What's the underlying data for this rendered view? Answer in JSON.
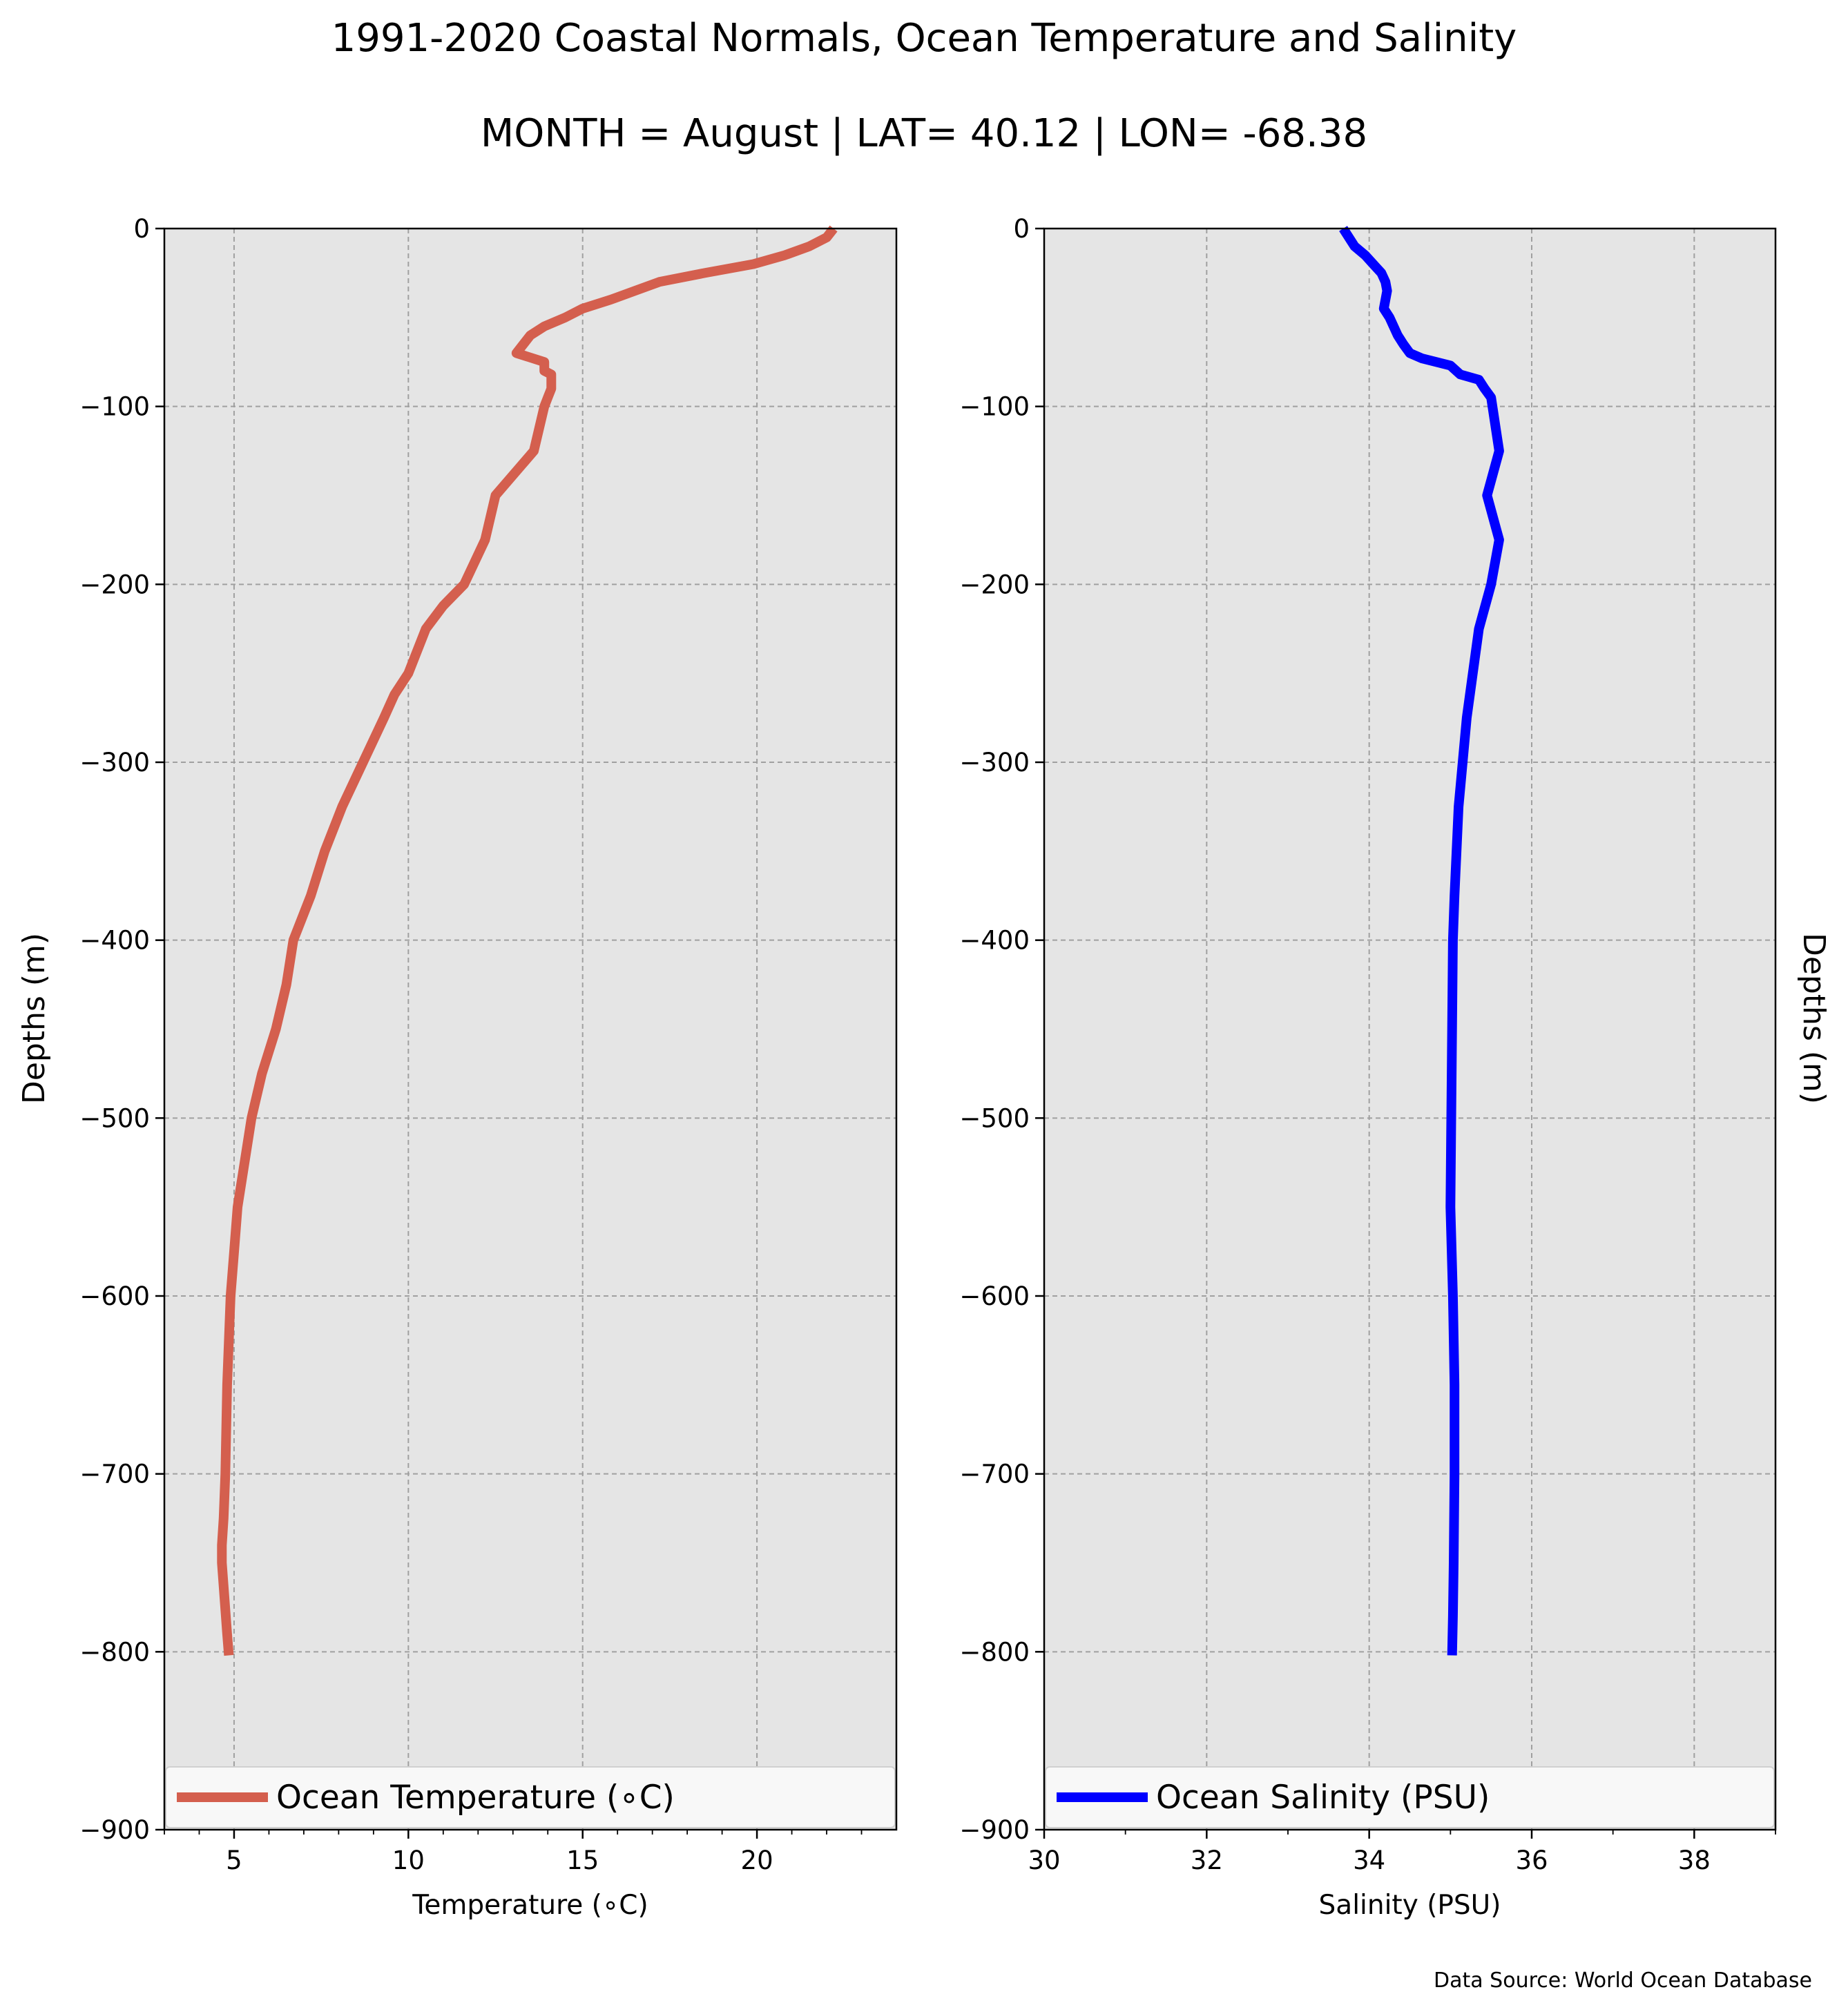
{
  "title": "1991-2020 Coastal Normals, Ocean Temperature and Salinity",
  "subtitle": "MONTH = August | LAT= 40.12 | LON= -68.38",
  "source_note": "Data Source: World Ocean Database",
  "colors": {
    "plot_background": "#e5e5e5",
    "grid": "#a0a0a0",
    "temperature_line": "#d45f4e",
    "salinity_line": "#0000ff",
    "legend_background": "#f8f8f8"
  },
  "chart_data": [
    {
      "type": "line",
      "xlabel": "Temperature ($^\\circ$C)",
      "xlabel_display": "Temperature (∘C)",
      "ylabel": "Depths (m)",
      "xlim": [
        3,
        24
      ],
      "ylim": [
        -900,
        0
      ],
      "xticks": [
        5,
        10,
        15,
        20
      ],
      "xtick_labels": [
        "5",
        "10",
        "15",
        "20"
      ],
      "minor_xticks": [
        3,
        4,
        6,
        7,
        8,
        9,
        11,
        12,
        13,
        14,
        16,
        17,
        18,
        19,
        21,
        22,
        23
      ],
      "yticks": [
        0,
        -100,
        -200,
        -300,
        -400,
        -500,
        -600,
        -700,
        -800,
        -900
      ],
      "ytick_labels": [
        "0",
        "−100",
        "−200",
        "−300",
        "−400",
        "−500",
        "−600",
        "−700",
        "−800",
        "−900"
      ],
      "grid": true,
      "legend_position": "bottom",
      "series": [
        {
          "name": "Ocean Temperature (∘C)",
          "x": [
            22.2,
            22.0,
            21.5,
            20.8,
            19.9,
            18.5,
            17.2,
            16.5,
            15.8,
            15.0,
            14.5,
            13.9,
            13.5,
            13.3,
            13.1,
            13.9,
            13.9,
            14.1,
            14.1,
            14.1,
            14.0,
            13.9,
            13.6,
            12.5,
            12.2,
            11.6,
            11.0,
            10.5,
            10.0,
            9.6,
            9.3,
            8.7,
            8.1,
            7.6,
            7.2,
            6.7,
            6.5,
            6.2,
            5.8,
            5.5,
            5.3,
            5.1,
            5.0,
            4.9,
            4.8,
            4.75,
            4.7,
            4.65,
            4.65,
            4.8,
            4.85
          ],
          "y": [
            0,
            -5,
            -10,
            -15,
            -20,
            -25,
            -30,
            -35,
            -40,
            -45,
            -50,
            -55,
            -60,
            -65,
            -70,
            -75,
            -80,
            -82,
            -85,
            -90,
            -95,
            -100,
            -125,
            -150,
            -175,
            -200,
            -212,
            -225,
            -250,
            -262,
            -275,
            -300,
            -325,
            -350,
            -375,
            -400,
            -425,
            -450,
            -475,
            -500,
            -525,
            -550,
            -575,
            -600,
            -650,
            -700,
            -725,
            -740,
            -750,
            -790,
            -802
          ]
        }
      ]
    },
    {
      "type": "line",
      "xlabel": "Salinity (PSU)",
      "ylabel": "Depths (m)",
      "xlim": [
        30,
        39
      ],
      "ylim": [
        -900,
        0
      ],
      "xticks": [
        30,
        32,
        34,
        36,
        38
      ],
      "xtick_labels": [
        "30",
        "32",
        "34",
        "36",
        "38"
      ],
      "minor_xticks": [
        31,
        33,
        35,
        37,
        39
      ],
      "yticks": [
        0,
        -100,
        -200,
        -300,
        -400,
        -500,
        -600,
        -700,
        -800,
        -900
      ],
      "ytick_labels": [
        "0",
        "−100",
        "−200",
        "−300",
        "−400",
        "−500",
        "−600",
        "−700",
        "−800",
        "−900"
      ],
      "grid": true,
      "legend_position": "bottom",
      "series": [
        {
          "name": "Ocean Salinity (PSU)",
          "x": [
            33.68,
            33.75,
            33.82,
            33.95,
            34.05,
            34.15,
            34.2,
            34.22,
            34.2,
            34.18,
            34.25,
            34.3,
            34.35,
            34.42,
            34.5,
            34.65,
            35.0,
            35.12,
            35.35,
            35.42,
            35.5,
            35.6,
            35.45,
            35.6,
            35.5,
            35.35,
            35.2,
            35.1,
            35.05,
            35.03,
            35.02,
            35.01,
            35.0,
            35.03,
            35.05,
            35.05,
            35.04,
            35.03,
            35.02
          ],
          "y": [
            0,
            -5,
            -10,
            -15,
            -20,
            -25,
            -30,
            -35,
            -40,
            -45,
            -50,
            -55,
            -60,
            -65,
            -70,
            -73,
            -77,
            -82,
            -85,
            -90,
            -95,
            -125,
            -150,
            -175,
            -200,
            -225,
            -275,
            -325,
            -375,
            -400,
            -450,
            -500,
            -550,
            -600,
            -650,
            -700,
            -750,
            -780,
            -802
          ]
        }
      ]
    }
  ]
}
